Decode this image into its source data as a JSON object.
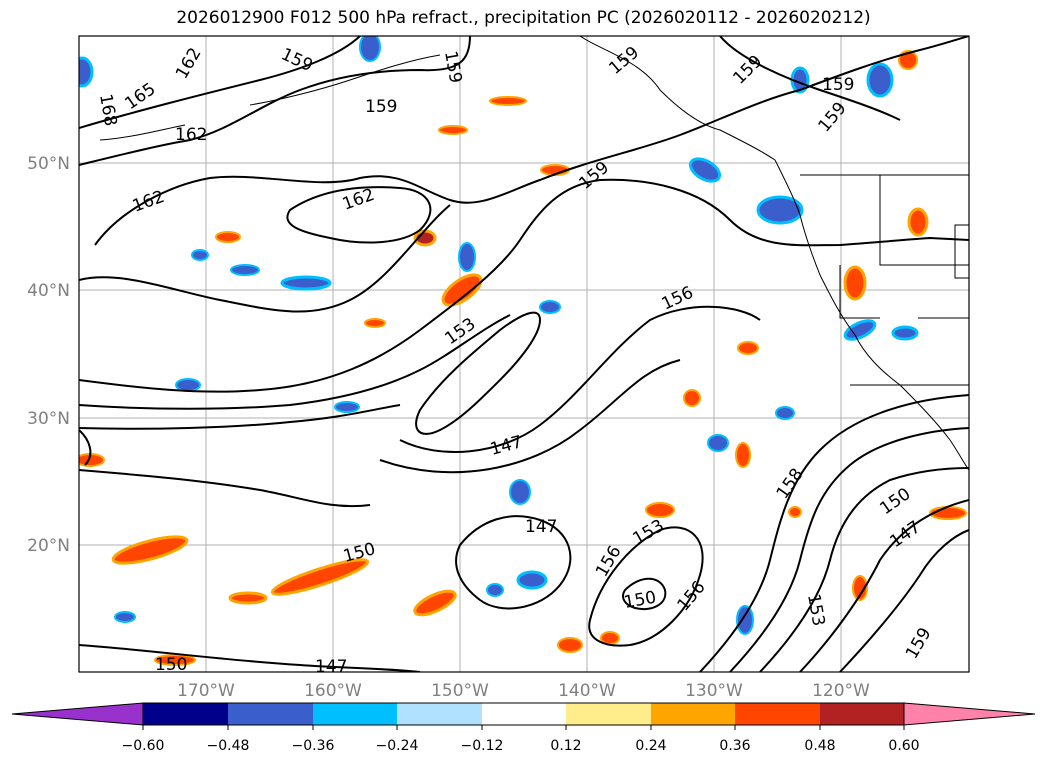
{
  "title": "2026012900 F012 500 hPa refract., precipitation PC (2026020112 - 2026020212)",
  "map": {
    "lat_labels": [
      "50°N",
      "40°N",
      "30°N",
      "20°N"
    ],
    "lon_labels": [
      "170°W",
      "160°W",
      "150°W",
      "140°W",
      "130°W",
      "120°W"
    ],
    "contour_labels": [
      "168",
      "165",
      "162",
      "159",
      "159",
      "162",
      "159",
      "162",
      "159",
      "159",
      "162",
      "159",
      "159",
      "159",
      "156",
      "153",
      "147",
      "147",
      "150",
      "153",
      "156",
      "150",
      "156",
      "158",
      "150",
      "147",
      "153",
      "159",
      "150",
      "147"
    ],
    "colors": {
      "contour": "#000000",
      "grid": "#b0b0b0",
      "coast": "#000000"
    }
  },
  "colorbar": {
    "ticks": [
      "−0.60",
      "−0.48",
      "−0.36",
      "−0.24",
      "−0.12",
      "0.12",
      "0.24",
      "0.36",
      "0.48",
      "0.60"
    ],
    "colors": [
      "#9932cc",
      "#00008b",
      "#3a5fcd",
      "#00bfff",
      "#b0e2ff",
      "#ffffff",
      "#ffec8b",
      "#ffa500",
      "#ff4500",
      "#b22222",
      "#ff82ab"
    ]
  }
}
